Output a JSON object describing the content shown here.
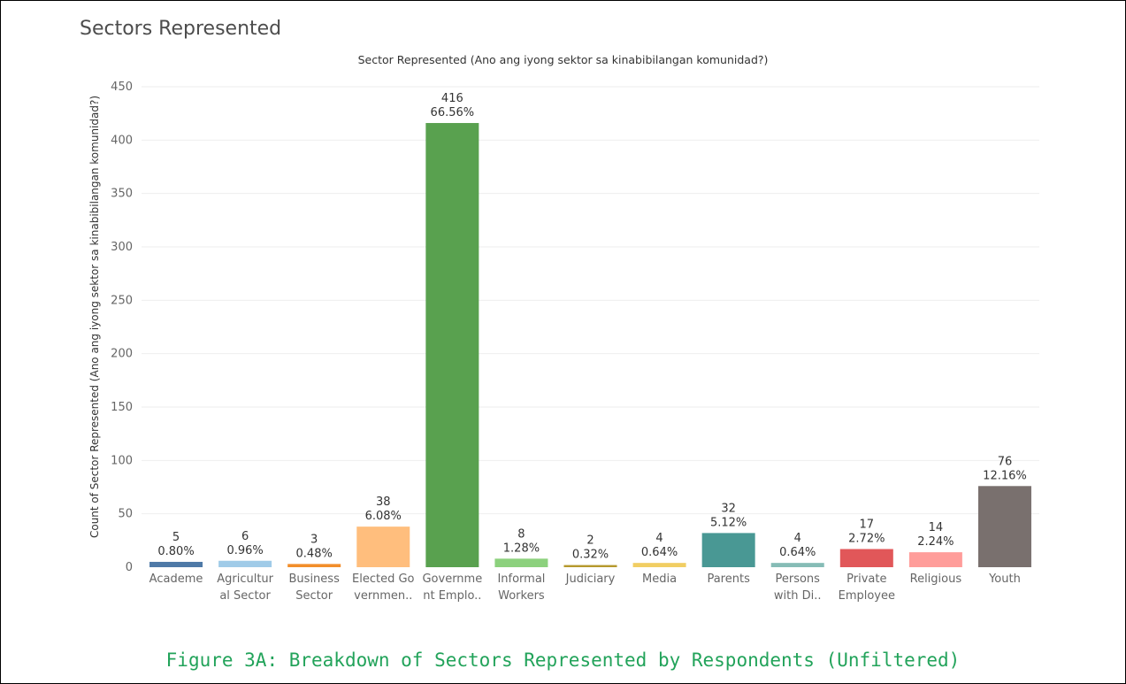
{
  "panel": {
    "title": "Sectors Represented"
  },
  "caption": "Figure 3A: Breakdown of Sectors Represented by Respondents (Unfiltered)",
  "chart_data": {
    "type": "bar",
    "title": "Sector Represented (Ano ang iyong sektor sa kinabibilangan komunidad?)",
    "xlabel": "",
    "ylabel": "Count of Sector Represented (Ano ang iyong sektor sa kinabibilangan komunidad?)",
    "ylim": [
      0,
      450
    ],
    "yticks": [
      0,
      50,
      100,
      150,
      200,
      250,
      300,
      350,
      400,
      450
    ],
    "grid": true,
    "categories": [
      [
        "Academe"
      ],
      [
        "Agricultur",
        "al Sector"
      ],
      [
        "Business",
        "Sector"
      ],
      [
        "Elected Go",
        "vernmen.."
      ],
      [
        "Governme",
        "nt Emplo.."
      ],
      [
        "Informal",
        "Workers"
      ],
      [
        "Judiciary"
      ],
      [
        "Media"
      ],
      [
        "Parents"
      ],
      [
        "Persons",
        "with Di.."
      ],
      [
        "Private",
        "Employee"
      ],
      [
        "Religious"
      ],
      [
        "Youth"
      ]
    ],
    "values": [
      5,
      6,
      3,
      38,
      416,
      8,
      2,
      4,
      32,
      4,
      17,
      14,
      76
    ],
    "percent_labels": [
      "0.80%",
      "0.96%",
      "0.48%",
      "6.08%",
      "66.56%",
      "1.28%",
      "0.32%",
      "0.64%",
      "5.12%",
      "0.64%",
      "2.72%",
      "2.24%",
      "12.16%"
    ],
    "colors": [
      "#4e79a7",
      "#a0cbe8",
      "#f28e2b",
      "#ffbe7d",
      "#59a14f",
      "#8cd17d",
      "#b6992d",
      "#f1ce63",
      "#499894",
      "#86bcb6",
      "#e15759",
      "#ff9d9a",
      "#79706e"
    ]
  }
}
